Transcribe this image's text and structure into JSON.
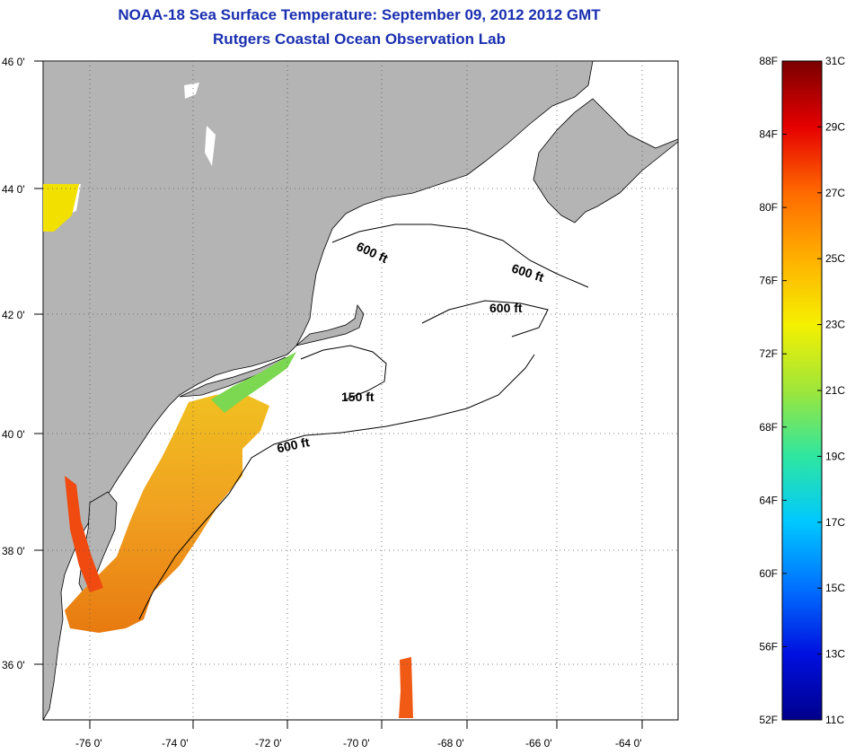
{
  "header": {
    "title": "NOAA-18 Sea Surface Temperature:  September 09, 2012 2012 GMT",
    "subtitle": "Rutgers Coastal Ocean Observation Lab"
  },
  "map": {
    "lat_ticks": [
      "46 0'",
      "44 0'",
      "42 0'",
      "40 0'",
      "38 0'",
      "36 0'"
    ],
    "lon_ticks": [
      "-76 0'",
      "-74 0'",
      "-72 0'",
      "-70 0'",
      "-68 0'",
      "-66 0'",
      "-64 0'"
    ],
    "contours": [
      {
        "label": "600 ft"
      },
      {
        "label": "600 ft"
      },
      {
        "label": "600 ft"
      },
      {
        "label": "150 ft"
      },
      {
        "label": "600 ft"
      }
    ],
    "colors": {
      "land": "#b4b4b4",
      "ocean": "#ffffff",
      "grid": "#555555"
    }
  },
  "colorbar": {
    "fahrenheit": [
      "88F",
      "84F",
      "80F",
      "76F",
      "72F",
      "68F",
      "64F",
      "60F",
      "56F",
      "52F"
    ],
    "celsius": [
      "31C",
      "29C",
      "27C",
      "25C",
      "23C",
      "21C",
      "19C",
      "17C",
      "15C",
      "13C",
      "11C"
    ],
    "gradient_colors": [
      "#7a0000",
      "#e60000",
      "#ff6a00",
      "#ffb000",
      "#f5f000",
      "#9ee63a",
      "#2ee6a0",
      "#00c8ff",
      "#0070ff",
      "#0010e0",
      "#00008c"
    ]
  }
}
